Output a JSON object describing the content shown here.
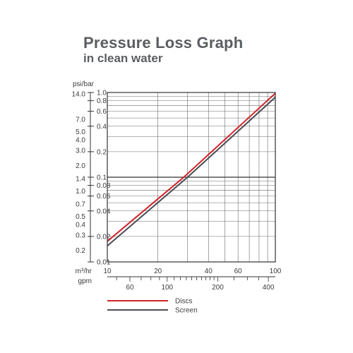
{
  "chart_data": {
    "type": "line",
    "title": "Pressure Loss Graph",
    "subtitle": "in clean water",
    "y_axis_title": "psi/bar",
    "y_scale": "log",
    "x_scale": "log",
    "grid": true,
    "ylim_bar": [
      0.01,
      1.0
    ],
    "xlim_m3hr": [
      10,
      100
    ],
    "bar_ticks": [
      "1.0",
      "0.8",
      "0.6",
      "0.4",
      "0.2",
      "0.1",
      "0.08",
      "0.06",
      "0.04",
      "0.02",
      "0.01"
    ],
    "psi_ticks": [
      "14.0",
      "7.0",
      "5.0",
      "4.0",
      "3.0",
      "2.0",
      "1.4",
      "1.0",
      "0.7",
      "0.5",
      "0.4",
      "0.3",
      "0.2"
    ],
    "x_axis_m3hr": {
      "label": "m³/hr",
      "ticks": [
        "10",
        "20",
        "40",
        "60",
        "100"
      ]
    },
    "x_axis_gpm": {
      "label": "gpm",
      "ticks": [
        "60",
        "100",
        "200",
        "400"
      ]
    },
    "series": [
      {
        "name": "Discs",
        "color": "#d2232a",
        "x": [
          10,
          28.5,
          100
        ],
        "y": [
          0.0175,
          0.1,
          0.98
        ]
      },
      {
        "name": "Screen",
        "color": "#4a4d55",
        "x": [
          10,
          30,
          100
        ],
        "y": [
          0.0155,
          0.1,
          0.88
        ]
      }
    ],
    "legend_position": "bottom-center"
  }
}
